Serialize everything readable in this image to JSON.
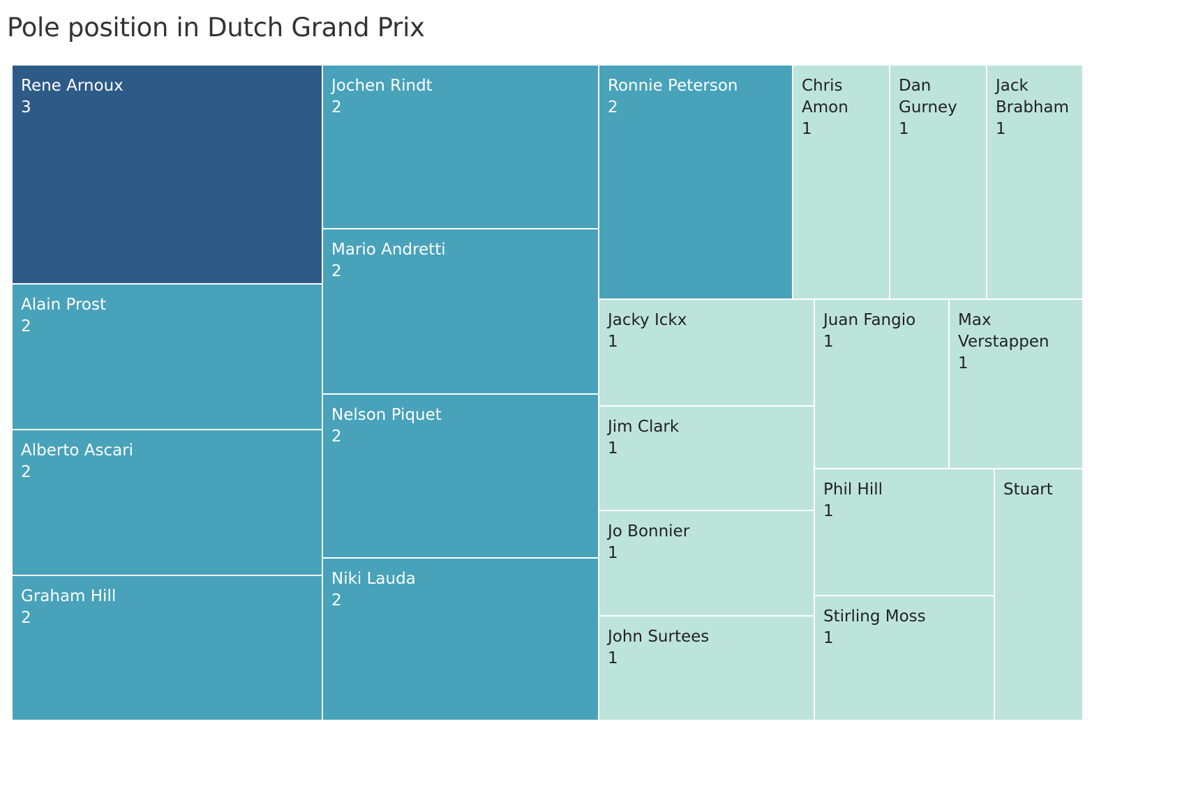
{
  "chart_data": {
    "type": "treemap",
    "title": "Pole position in Dutch Grand Prix",
    "measure": "pole positions",
    "color_scale": {
      "3": "#2e5a87",
      "2": "#47a2ba",
      "1": "#bde4da"
    },
    "label_colors": {
      "dark_background": "#ffffff",
      "light_background": "#222222"
    },
    "items": [
      {
        "name_lines": [
          "Rene Arnoux"
        ],
        "value": 3,
        "value_label": "3"
      },
      {
        "name_lines": [
          "Alain Prost"
        ],
        "value": 2,
        "value_label": "2"
      },
      {
        "name_lines": [
          "Alberto Ascari"
        ],
        "value": 2,
        "value_label": "2"
      },
      {
        "name_lines": [
          "Graham Hill"
        ],
        "value": 2,
        "value_label": "2"
      },
      {
        "name_lines": [
          "Jochen Rindt"
        ],
        "value": 2,
        "value_label": "2"
      },
      {
        "name_lines": [
          "Mario Andretti"
        ],
        "value": 2,
        "value_label": "2"
      },
      {
        "name_lines": [
          "Nelson Piquet"
        ],
        "value": 2,
        "value_label": "2"
      },
      {
        "name_lines": [
          "Niki Lauda"
        ],
        "value": 2,
        "value_label": "2"
      },
      {
        "name_lines": [
          "Ronnie Peterson"
        ],
        "value": 2,
        "value_label": "2"
      },
      {
        "name_lines": [
          "Chris",
          "Amon"
        ],
        "value": 1,
        "value_label": "1"
      },
      {
        "name_lines": [
          "Dan",
          "Gurney"
        ],
        "value": 1,
        "value_label": "1"
      },
      {
        "name_lines": [
          "Jack",
          "Brabham"
        ],
        "value": 1,
        "value_label": "1"
      },
      {
        "name_lines": [
          "Jacky Ickx"
        ],
        "value": 1,
        "value_label": "1"
      },
      {
        "name_lines": [
          "Jim Clark"
        ],
        "value": 1,
        "value_label": "1"
      },
      {
        "name_lines": [
          "Jo Bonnier"
        ],
        "value": 1,
        "value_label": "1"
      },
      {
        "name_lines": [
          "John Surtees"
        ],
        "value": 1,
        "value_label": "1"
      },
      {
        "name_lines": [
          "Juan Fangio"
        ],
        "value": 1,
        "value_label": "1"
      },
      {
        "name_lines": [
          "Max",
          "Verstappen"
        ],
        "value": 1,
        "value_label": "1"
      },
      {
        "name_lines": [
          "Phil Hill"
        ],
        "value": 1,
        "value_label": "1"
      },
      {
        "name_lines": [
          "Stirling Moss"
        ],
        "value": 1,
        "value_label": "1"
      },
      {
        "name_lines": [
          "Stuart"
        ],
        "value": 1,
        "value_label": ""
      }
    ]
  }
}
